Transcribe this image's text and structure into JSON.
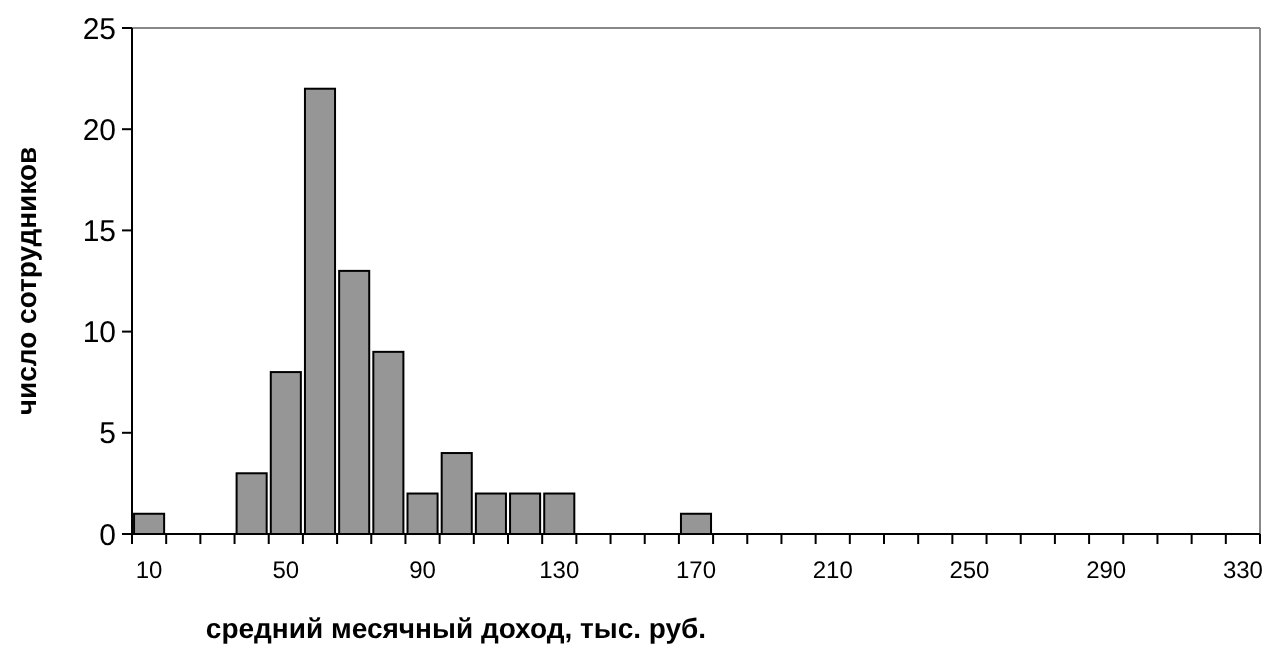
{
  "chart_data": {
    "type": "bar",
    "xlabel": "средний месячный доход, тыс. руб.",
    "ylabel": "число сотрудников",
    "color": "#969696",
    "categories": [
      "10",
      null,
      null,
      null,
      "50",
      null,
      null,
      null,
      "90",
      null,
      null,
      null,
      "130",
      null,
      null,
      null,
      "170",
      null,
      null,
      null,
      "210",
      null,
      null,
      null,
      "250",
      null,
      null,
      null,
      "290",
      null,
      null,
      null,
      "330"
    ],
    "values": [
      1,
      0,
      0,
      3,
      8,
      22,
      13,
      9,
      2,
      4,
      2,
      2,
      2,
      0,
      0,
      0,
      1,
      0,
      0,
      0,
      0,
      0,
      0,
      0,
      0,
      0,
      0,
      0,
      0,
      0,
      0,
      0,
      0
    ],
    "ylim": [
      0,
      25
    ],
    "yticks": [
      0,
      5,
      10,
      15,
      20,
      25
    ]
  }
}
